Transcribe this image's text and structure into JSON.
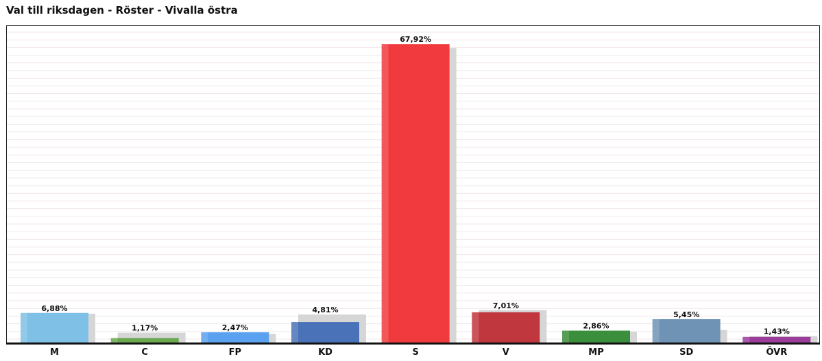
{
  "chart_data": {
    "type": "bar",
    "title": "Val till riksdagen - Röster - Vivalla östra",
    "categories": [
      "M",
      "C",
      "FP",
      "KD",
      "S",
      "V",
      "MP",
      "SD",
      "ÖVR"
    ],
    "series": [
      {
        "values": [
          6.88,
          1.17,
          2.47,
          4.81,
          67.92,
          7.01,
          2.86,
          5.45,
          1.43
        ],
        "labels": [
          "6,88%",
          "1,17%",
          "2,47%",
          "4,81%",
          "67,92%",
          "7,01%",
          "2,86%",
          "5,45%",
          "1,43%"
        ]
      }
    ],
    "comparison_values": [
      6.7,
      2.4,
      2.1,
      6.5,
      67.0,
      7.5,
      2.6,
      3.0,
      1.6
    ],
    "colors": [
      "#7fc0e6",
      "#6aa84f",
      "#5aa2f0",
      "#4a72b8",
      "#f03a3e",
      "#c1373e",
      "#3b8e3b",
      "#6f93b4",
      "#9b3c9b"
    ],
    "shadow_color": "#d6d6d6",
    "ylim": [
      0,
      72
    ],
    "grid": true
  }
}
